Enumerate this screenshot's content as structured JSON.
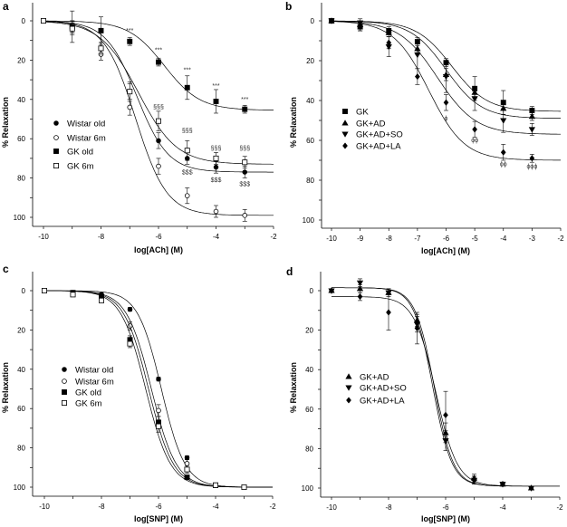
{
  "chart_data": [
    {
      "type": "scatter",
      "panel_label": "a",
      "xlabel": "log[ACh] (M)",
      "ylabel": "% Relaxation",
      "xlim": [
        -10,
        -2
      ],
      "ylim": [
        0,
        100
      ],
      "y_inverted": true,
      "xticks": [
        "-10",
        "-8",
        "-6",
        "-4",
        "-2"
      ],
      "xtick_values": [
        -10,
        -8,
        -6,
        -4,
        -2
      ],
      "yticks": [
        "0",
        "20",
        "40",
        "60",
        "80",
        "100"
      ],
      "yticks_values": [
        0,
        20,
        40,
        60,
        80,
        100
      ],
      "x": [
        -10,
        -9,
        -8,
        -7,
        -6,
        -5,
        -4,
        -3
      ],
      "legend_position": "center-left",
      "series": [
        {
          "name": "Wistar old",
          "marker": "filled-circle",
          "values": [
            0,
            3,
            14,
            36,
            61,
            70,
            74.5,
            77
          ],
          "errors": [
            0,
            3,
            3,
            4,
            4,
            3,
            3,
            3
          ],
          "fit": {
            "top": 0,
            "bottom": 77,
            "logEC50": -6.75,
            "hill": 0.8
          }
        },
        {
          "name": "Wistar 6m",
          "marker": "open-circle",
          "values": [
            0,
            3,
            17,
            44,
            74,
            89,
            97,
            99
          ],
          "errors": [
            0,
            3,
            3,
            4,
            4,
            4,
            3,
            3
          ],
          "fit": {
            "top": 0,
            "bottom": 99,
            "logEC50": -6.8,
            "hill": 0.8
          }
        },
        {
          "name": "GK old",
          "marker": "filled-square",
          "values": [
            0,
            3,
            5,
            10.5,
            21,
            34,
            41,
            45
          ],
          "errors": [
            0,
            8,
            7,
            2,
            2,
            6,
            6,
            2
          ],
          "fit": {
            "top": 0,
            "bottom": 45.5,
            "logEC50": -5.8,
            "hill": 0.7
          }
        },
        {
          "name": "GK 6m",
          "marker": "open-square",
          "values": [
            0,
            4,
            14,
            36,
            51,
            66,
            70,
            72
          ],
          "errors": [
            0,
            3,
            3,
            5,
            5,
            5,
            3,
            3
          ],
          "fit": {
            "top": 0,
            "bottom": 73,
            "logEC50": -6.7,
            "hill": 0.65
          }
        }
      ],
      "annotations": [
        {
          "text": "***",
          "x": -7,
          "y": 6
        },
        {
          "text": "***",
          "x": -6,
          "y": 16
        },
        {
          "text": "***",
          "x": -5,
          "y": 26
        },
        {
          "text": "***",
          "x": -4,
          "y": 34
        },
        {
          "text": "***",
          "x": -3,
          "y": 41
        },
        {
          "text": "§§§",
          "x": -6,
          "y": 45
        },
        {
          "text": "§§§",
          "x": -5,
          "y": 57
        },
        {
          "text": "§§§",
          "x": -4,
          "y": 66
        },
        {
          "text": "§§§",
          "x": -3,
          "y": 66
        },
        {
          "text": "$$$",
          "x": -5,
          "y": 78
        },
        {
          "text": "$$$",
          "x": -4,
          "y": 82
        },
        {
          "text": "$$$",
          "x": -3,
          "y": 84
        }
      ]
    },
    {
      "type": "scatter",
      "panel_label": "b",
      "xlabel": "log[ACh] (M)",
      "ylabel": "% Relaxation",
      "xlim": [
        -10,
        -2
      ],
      "ylim": [
        0,
        100
      ],
      "y_inverted": true,
      "xticks": [
        "-10",
        "-9",
        "-8",
        "-7",
        "-6",
        "-5",
        "-4",
        "-3",
        "-2"
      ],
      "xtick_values": [
        -10,
        -9,
        -8,
        -7,
        -6,
        -5,
        -4,
        -3,
        -2
      ],
      "yticks": [
        "0",
        "20",
        "40",
        "60",
        "80",
        "100"
      ],
      "yticks_values": [
        0,
        20,
        40,
        60,
        80,
        100
      ],
      "x": [
        -10,
        -9,
        -8,
        -7,
        -6,
        -5,
        -4,
        -3
      ],
      "legend_position": "center-left",
      "series": [
        {
          "name": "GK",
          "marker": "filled-square",
          "values": [
            0,
            3,
            5,
            10.5,
            21,
            34,
            41,
            45
          ],
          "errors": [
            0,
            2,
            2,
            2,
            2,
            6,
            6,
            2
          ],
          "fit": {
            "top": 0,
            "bottom": 45.5,
            "logEC50": -5.8,
            "hill": 0.7
          }
        },
        {
          "name": "GK+AD",
          "marker": "triangle-up",
          "values": [
            0,
            2,
            6,
            14,
            27,
            36,
            44,
            48
          ],
          "errors": [
            0,
            2,
            2,
            3,
            3,
            3,
            3,
            2
          ],
          "fit": {
            "top": 0,
            "bottom": 49,
            "logEC50": -6.0,
            "hill": 0.7
          }
        },
        {
          "name": "GK+AD+SO",
          "marker": "triangle-down",
          "values": [
            0,
            1,
            13,
            17,
            28,
            39,
            50,
            54.5
          ],
          "errors": [
            0,
            2,
            5,
            7,
            8,
            6,
            6,
            3
          ],
          "fit": {
            "top": 0,
            "bottom": 57,
            "logEC50": -6.3,
            "hill": 0.65
          }
        },
        {
          "name": "GK+AD+LA",
          "marker": "diamond",
          "values": [
            0,
            3,
            11,
            28,
            41,
            54.5,
            66,
            69
          ],
          "errors": [
            0,
            2,
            3,
            4,
            4,
            4,
            4,
            2
          ],
          "fit": {
            "top": 0,
            "bottom": 70,
            "logEC50": -6.6,
            "hill": 0.7
          }
        }
      ],
      "annotations": [
        {
          "text": "ϕ",
          "x": -6,
          "y": 50
        },
        {
          "text": "ϕϕ",
          "x": -5,
          "y": 61
        },
        {
          "text": "ϕϕ",
          "x": -4,
          "y": 73
        },
        {
          "text": "ϕϕϕ",
          "x": -3,
          "y": 74
        }
      ]
    },
    {
      "type": "scatter",
      "panel_label": "c",
      "xlabel": "log[SNP] (M)",
      "ylabel": "% Relaxation",
      "xlim": [
        -10,
        -2
      ],
      "ylim": [
        0,
        100
      ],
      "y_inverted": true,
      "xticks": [
        "-10",
        "-8",
        "-6",
        "-4",
        "-2"
      ],
      "xtick_values": [
        -10,
        -8,
        -6,
        -4,
        -2
      ],
      "yticks": [
        "0",
        "20",
        "40",
        "60",
        "80",
        "100"
      ],
      "yticks_values": [
        0,
        20,
        40,
        60,
        80,
        100
      ],
      "x": [
        -10,
        -9,
        -8,
        -7,
        -6,
        -5,
        -4,
        -3
      ],
      "legend_position": "center-left",
      "series": [
        {
          "name": "Wistar old",
          "marker": "filled-circle",
          "values": [
            0,
            1,
            2,
            9.5,
            45,
            85,
            99,
            100
          ],
          "errors": [
            0,
            1,
            1,
            1,
            1,
            1,
            1,
            0.5
          ],
          "fit": {
            "top": 0,
            "bottom": 100,
            "logEC50": -5.9,
            "hill": 1.05
          }
        },
        {
          "name": "Wistar 6m",
          "marker": "open-circle",
          "values": [
            0,
            1,
            4,
            18,
            61,
            88,
            99,
            100
          ],
          "errors": [
            0,
            1,
            1,
            2,
            3,
            2,
            1,
            0.5
          ],
          "fit": {
            "top": 0,
            "bottom": 100,
            "logEC50": -6.25,
            "hill": 1.0
          }
        },
        {
          "name": "GK old",
          "marker": "filled-square",
          "values": [
            0,
            1,
            3,
            25,
            67,
            95,
            99,
            100
          ],
          "errors": [
            0,
            1,
            1,
            2,
            3,
            1,
            1,
            0.5
          ],
          "fit": {
            "top": 0,
            "bottom": 100,
            "logEC50": -6.45,
            "hill": 1.0
          }
        },
        {
          "name": "GK 6m",
          "marker": "open-square",
          "values": [
            0,
            2,
            5,
            27,
            69,
            91,
            99,
            100
          ],
          "errors": [
            0,
            1,
            1,
            2,
            3,
            2,
            1,
            0.5
          ],
          "fit": {
            "top": 0,
            "bottom": 100,
            "logEC50": -6.35,
            "hill": 1.0
          }
        }
      ],
      "annotations": []
    },
    {
      "type": "scatter",
      "panel_label": "d",
      "xlabel": "log[SNP] (M)",
      "ylabel": "% Relaxation",
      "xlim": [
        -10,
        -2
      ],
      "ylim": [
        0,
        100
      ],
      "y_inverted": true,
      "xticks": [
        "-10",
        "-8",
        "-6",
        "-4",
        "-2"
      ],
      "xtick_values": [
        -10,
        -8,
        -6,
        -4,
        -2
      ],
      "yticks": [
        "0",
        "20",
        "40",
        "60",
        "80",
        "100"
      ],
      "yticks_values": [
        0,
        20,
        40,
        60,
        80,
        100
      ],
      "x": [
        -10,
        -9,
        -8,
        -7,
        -6,
        -5,
        -4,
        -3
      ],
      "legend_position": "center-left",
      "series": [
        {
          "name": "GK+AD",
          "marker": "triangle-up",
          "values": [
            0,
            -1,
            1,
            15,
            72,
            95,
            98,
            100
          ],
          "errors": [
            0,
            2,
            1,
            3,
            5,
            2,
            1,
            0.5
          ],
          "fit": {
            "top": -1.5,
            "bottom": 99,
            "logEC50": -6.4,
            "hill": 1.3
          }
        },
        {
          "name": "GK+AD+SO",
          "marker": "triangle-down",
          "values": [
            0,
            -4,
            1,
            17,
            76,
            96,
            98,
            100
          ],
          "errors": [
            0,
            2,
            2,
            4,
            5,
            2,
            1,
            0.5
          ],
          "fit": {
            "top": -1.5,
            "bottom": 99,
            "logEC50": -6.45,
            "hill": 1.3
          }
        },
        {
          "name": "GK+AD+LA",
          "marker": "diamond",
          "values": [
            0,
            3,
            11,
            19,
            63,
            96,
            98,
            100
          ],
          "errors": [
            0,
            2,
            9,
            8,
            12,
            2,
            1,
            0.5
          ],
          "fit": {
            "top": 3,
            "bottom": 99,
            "logEC50": -6.35,
            "hill": 1.15
          }
        }
      ],
      "annotations": []
    }
  ]
}
